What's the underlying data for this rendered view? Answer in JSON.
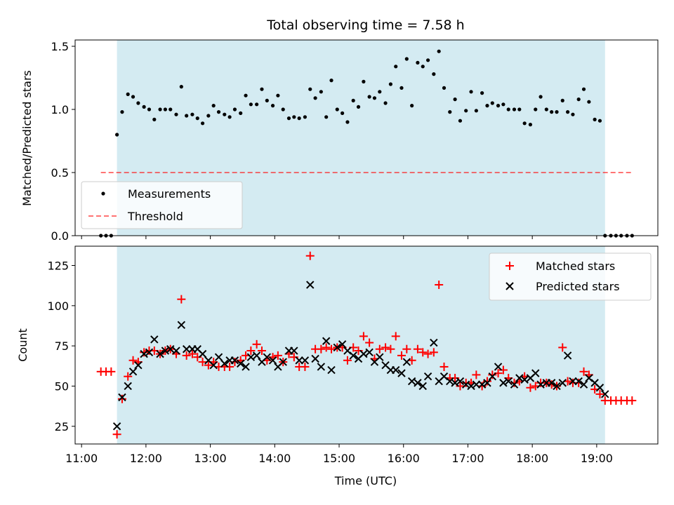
{
  "chart_data": [
    {
      "type": "scatter",
      "title": "Total observing time = 7.58 h",
      "xlabel": "",
      "ylabel": "Matched/Predicted stars",
      "x_unit": "hours (UTC)",
      "xlim": [
        10.9,
        19.95
      ],
      "ylim": [
        0,
        1.55
      ],
      "yticks": [
        0.0,
        0.5,
        1.0,
        1.5
      ],
      "ytick_labels": [
        "0.0",
        "0.5",
        "1.0",
        "1.5"
      ],
      "shaded_span": [
        11.55,
        19.13
      ],
      "shaded_color": "#add8e6",
      "legend_position": "lower-left",
      "series": [
        {
          "name": "Measurements",
          "marker": "dot",
          "color": "#000000",
          "x": [
            11.3,
            11.38,
            11.46,
            11.55,
            11.63,
            11.72,
            11.8,
            11.88,
            11.97,
            12.05,
            12.13,
            12.22,
            12.3,
            12.38,
            12.47,
            12.55,
            12.63,
            12.72,
            12.8,
            12.88,
            12.97,
            13.05,
            13.13,
            13.22,
            13.3,
            13.38,
            13.47,
            13.55,
            13.63,
            13.72,
            13.8,
            13.88,
            13.97,
            14.05,
            14.13,
            14.22,
            14.3,
            14.38,
            14.47,
            14.55,
            14.63,
            14.72,
            14.8,
            14.88,
            14.97,
            15.05,
            15.13,
            15.22,
            15.3,
            15.38,
            15.47,
            15.55,
            15.63,
            15.72,
            15.8,
            15.88,
            15.97,
            16.05,
            16.13,
            16.22,
            16.3,
            16.38,
            16.47,
            16.55,
            16.63,
            16.72,
            16.8,
            16.88,
            16.97,
            17.05,
            17.13,
            17.22,
            17.3,
            17.38,
            17.47,
            17.55,
            17.63,
            17.72,
            17.8,
            17.88,
            17.97,
            18.05,
            18.13,
            18.22,
            18.3,
            18.38,
            18.47,
            18.55,
            18.63,
            18.72,
            18.8,
            18.88,
            18.97,
            19.05,
            19.13,
            19.22,
            19.3,
            19.38,
            19.47,
            19.55
          ],
          "y": [
            0,
            0,
            0,
            0.8,
            0.98,
            1.12,
            1.1,
            1.05,
            1.02,
            1.0,
            0.92,
            1.0,
            1.0,
            1.0,
            0.96,
            1.18,
            0.95,
            0.96,
            0.93,
            0.89,
            0.95,
            1.03,
            0.98,
            0.96,
            0.94,
            1.0,
            0.97,
            1.11,
            1.04,
            1.04,
            1.16,
            1.07,
            1.03,
            1.11,
            1.0,
            0.93,
            0.94,
            0.93,
            0.94,
            1.16,
            1.09,
            1.14,
            0.94,
            1.23,
            1.0,
            0.97,
            0.9,
            1.07,
            1.02,
            1.22,
            1.1,
            1.09,
            1.14,
            1.05,
            1.2,
            1.34,
            1.17,
            1.4,
            1.03,
            1.37,
            1.34,
            1.39,
            1.28,
            1.46,
            1.17,
            0.98,
            1.08,
            0.91,
            0.99,
            1.14,
            0.99,
            1.13,
            1.03,
            1.05,
            1.03,
            1.04,
            1.0,
            1.0,
            1.0,
            0.89,
            0.88,
            1.0,
            1.1,
            1.0,
            0.98,
            0.98,
            1.07,
            0.98,
            0.96,
            1.08,
            1.16,
            1.06,
            0.92,
            0.91,
            0,
            0,
            0,
            0,
            0,
            0
          ]
        },
        {
          "name": "Threshold",
          "marker": "dashed-line",
          "color": "#ff0000",
          "x": [
            11.3,
            19.55
          ],
          "y": [
            0.5,
            0.5
          ]
        }
      ]
    },
    {
      "type": "scatter",
      "title": "",
      "xlabel": "Time (UTC)",
      "ylabel": "Count",
      "x_unit": "hours (UTC)",
      "xlim": [
        10.9,
        19.95
      ],
      "ylim": [
        14,
        137
      ],
      "yticks": [
        25,
        50,
        75,
        100,
        125
      ],
      "ytick_labels": [
        "25",
        "50",
        "75",
        "100",
        "125"
      ],
      "xticks": [
        11,
        12,
        13,
        14,
        15,
        16,
        17,
        18,
        19
      ],
      "xtick_labels": [
        "11:00",
        "12:00",
        "13:00",
        "14:00",
        "15:00",
        "16:00",
        "17:00",
        "18:00",
        "19:00"
      ],
      "shaded_span": [
        11.55,
        19.13
      ],
      "shaded_color": "#add8e6",
      "legend_position": "top-right",
      "series": [
        {
          "name": "Matched stars",
          "marker": "plus",
          "color": "#ff0000",
          "x": [
            11.3,
            11.38,
            11.46,
            11.55,
            11.63,
            11.72,
            11.8,
            11.88,
            11.97,
            12.05,
            12.13,
            12.22,
            12.3,
            12.38,
            12.47,
            12.55,
            12.63,
            12.72,
            12.8,
            12.88,
            12.97,
            13.05,
            13.13,
            13.22,
            13.3,
            13.38,
            13.47,
            13.55,
            13.63,
            13.72,
            13.8,
            13.88,
            13.97,
            14.05,
            14.13,
            14.22,
            14.3,
            14.38,
            14.47,
            14.55,
            14.63,
            14.72,
            14.8,
            14.88,
            14.97,
            15.05,
            15.13,
            15.22,
            15.3,
            15.38,
            15.47,
            15.55,
            15.63,
            15.72,
            15.8,
            15.88,
            15.97,
            16.05,
            16.13,
            16.22,
            16.3,
            16.38,
            16.47,
            16.55,
            16.63,
            16.72,
            16.8,
            16.88,
            16.97,
            17.05,
            17.13,
            17.22,
            17.3,
            17.38,
            17.47,
            17.55,
            17.63,
            17.72,
            17.8,
            17.88,
            17.97,
            18.05,
            18.13,
            18.22,
            18.3,
            18.38,
            18.47,
            18.55,
            18.63,
            18.72,
            18.8,
            18.88,
            18.97,
            19.05,
            19.13,
            19.22,
            19.3,
            19.38,
            19.47,
            19.55
          ],
          "y": [
            59,
            59,
            59,
            20,
            42,
            56,
            66,
            65,
            71,
            72,
            72,
            70,
            72,
            73,
            70,
            104,
            69,
            70,
            68,
            65,
            63,
            65,
            62,
            62,
            62,
            65,
            66,
            69,
            72,
            76,
            72,
            66,
            68,
            69,
            65,
            70,
            68,
            62,
            62,
            131,
            73,
            73,
            74,
            73,
            74,
            74,
            66,
            74,
            72,
            81,
            77,
            67,
            73,
            74,
            73,
            81,
            69,
            73,
            66,
            73,
            71,
            70,
            71,
            113,
            62,
            55,
            55,
            50,
            52,
            52,
            57,
            50,
            53,
            57,
            58,
            60,
            55,
            52,
            53,
            56,
            49,
            50,
            52,
            52,
            51,
            50,
            74,
            53,
            52,
            52,
            59,
            57,
            48,
            45,
            41,
            41,
            41,
            41,
            41,
            41
          ]
        },
        {
          "name": "Predicted stars",
          "marker": "x",
          "color": "#000000",
          "x": [
            11.55,
            11.63,
            11.72,
            11.8,
            11.88,
            11.97,
            12.05,
            12.13,
            12.22,
            12.3,
            12.38,
            12.47,
            12.55,
            12.63,
            12.72,
            12.8,
            12.88,
            12.97,
            13.05,
            13.13,
            13.22,
            13.3,
            13.38,
            13.47,
            13.55,
            13.63,
            13.72,
            13.8,
            13.88,
            13.97,
            14.05,
            14.13,
            14.22,
            14.3,
            14.38,
            14.47,
            14.55,
            14.63,
            14.72,
            14.8,
            14.88,
            14.97,
            15.05,
            15.13,
            15.22,
            15.3,
            15.38,
            15.47,
            15.55,
            15.63,
            15.72,
            15.8,
            15.88,
            15.97,
            16.05,
            16.13,
            16.22,
            16.3,
            16.38,
            16.47,
            16.55,
            16.63,
            16.72,
            16.8,
            16.88,
            16.97,
            17.05,
            17.13,
            17.22,
            17.3,
            17.38,
            17.47,
            17.55,
            17.63,
            17.72,
            17.8,
            17.88,
            17.97,
            18.05,
            18.13,
            18.22,
            18.3,
            18.38,
            18.47,
            18.55,
            18.63,
            18.72,
            18.8,
            18.88,
            18.97,
            19.05,
            19.13
          ],
          "y": [
            25,
            43,
            50,
            59,
            63,
            70,
            71,
            79,
            70,
            72,
            73,
            72,
            88,
            73,
            73,
            73,
            70,
            66,
            63,
            68,
            64,
            66,
            66,
            64,
            62,
            68,
            69,
            65,
            68,
            66,
            62,
            65,
            72,
            72,
            66,
            66,
            113,
            67,
            62,
            78,
            60,
            74,
            76,
            72,
            69,
            67,
            70,
            71,
            65,
            68,
            63,
            60,
            60,
            58,
            65,
            53,
            52,
            50,
            56,
            77,
            53,
            56,
            53,
            52,
            53,
            51,
            50,
            51,
            51,
            52,
            56,
            62,
            52,
            53,
            51,
            55,
            54,
            55,
            58,
            51,
            52,
            52,
            50,
            52,
            69,
            53,
            53,
            51,
            55,
            52,
            49,
            45
          ]
        }
      ]
    }
  ]
}
